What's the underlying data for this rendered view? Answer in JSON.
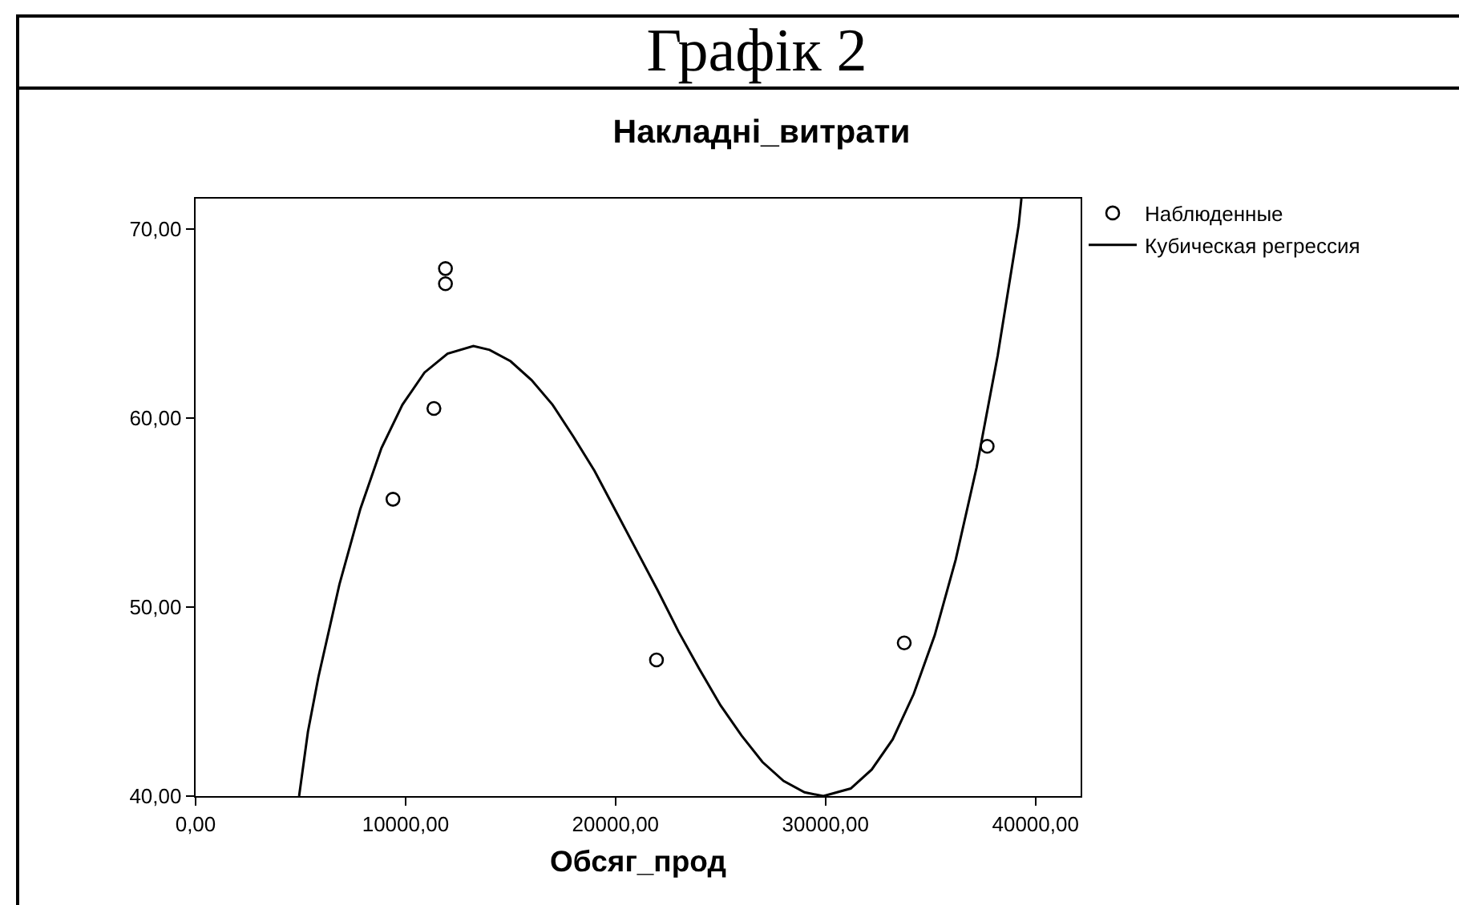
{
  "chart_data": {
    "type": "scatter",
    "title": "Графік 2",
    "subtitle": "Накладні_витрати",
    "xlabel": "Обсяг_прод",
    "xlim": [
      0,
      42150
    ],
    "xticks": [
      {
        "value": 0,
        "label": "0,00"
      },
      {
        "value": 10000,
        "label": "10000,00"
      },
      {
        "value": 20000,
        "label": "20000,00"
      },
      {
        "value": 30000,
        "label": "30000,00"
      },
      {
        "value": 40000,
        "label": "40000,00"
      }
    ],
    "ylim": [
      40,
      71.6
    ],
    "yticks": [
      {
        "value": 40,
        "label": "40,00"
      },
      {
        "value": 50,
        "label": "50,00"
      },
      {
        "value": 60,
        "label": "60,00"
      },
      {
        "value": 70,
        "label": "70,00"
      }
    ],
    "grid": false,
    "legend": "top right",
    "series": [
      {
        "name": "Наблюденные",
        "marker": "circle",
        "color": "#000000",
        "x": [
          9400,
          11350,
          11900,
          11900,
          21950,
          33750,
          37700
        ],
        "values": [
          55.7,
          60.5,
          67.9,
          67.1,
          47.2,
          48.1,
          58.5
        ]
      },
      {
        "name": "Кубическая регрессия",
        "type": "line",
        "marker": "none",
        "line_style": "solid",
        "color": "#000000",
        "x": [
          4930,
          5350,
          5850,
          6850,
          7850,
          8850,
          9850,
          10900,
          12000,
          13230,
          14000,
          15000,
          16000,
          17000,
          18000,
          19000,
          20000,
          21000,
          22000,
          23000,
          24000,
          25000,
          26000,
          27000,
          28000,
          29000,
          29900,
          31200,
          32200,
          33200,
          34200,
          35200,
          36200,
          37200,
          38200,
          39200,
          39330
        ],
        "values": [
          40.0,
          43.4,
          46.3,
          51.2,
          55.2,
          58.4,
          60.7,
          62.4,
          63.4,
          63.8,
          63.6,
          63.0,
          62.0,
          60.7,
          59.0,
          57.2,
          55.1,
          53.0,
          50.9,
          48.7,
          46.7,
          44.8,
          43.2,
          41.8,
          40.8,
          40.2,
          40.0,
          40.4,
          41.4,
          43.0,
          45.4,
          48.5,
          52.5,
          57.4,
          63.3,
          70.2,
          71.6
        ]
      }
    ]
  }
}
